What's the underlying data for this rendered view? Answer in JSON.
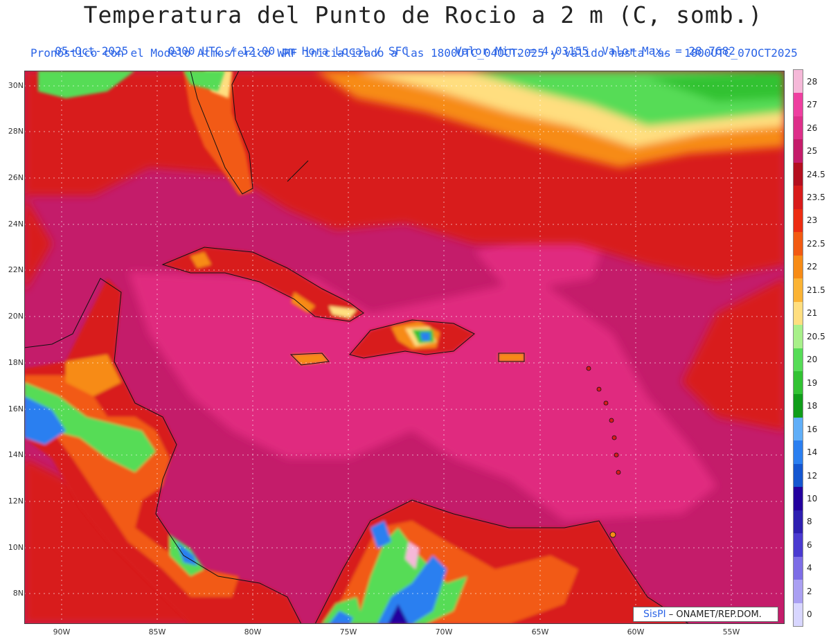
{
  "header": {
    "title": "Temperatura del Punto de Rocio a 2 m (C, somb.)",
    "date": "05-Oct-2025",
    "time": "0300 UTC / 12:00 pm Hora Local / SFC",
    "minmax": "Valor Min. = 4.03155  Valor Max. = 28.7682",
    "model_info": "Pronóstico con el Modelo Atmosferico WRF inicializado a las 1800UTC_04OCT2025 y válido hasta las  1800UTC_07OCT2025"
  },
  "axes": {
    "lat_labels": [
      "30N",
      "28N",
      "26N",
      "24N",
      "22N",
      "20N",
      "18N",
      "16N",
      "14N",
      "12N",
      "10N",
      "8N"
    ],
    "lon_labels": [
      "90W",
      "85W",
      "80W",
      "75W",
      "70W",
      "65W",
      "60W",
      "55W"
    ]
  },
  "colorbar": {
    "labels": [
      "28",
      "27",
      "26",
      "25",
      "24.5",
      "23.5",
      "23",
      "22.5",
      "22",
      "21.5",
      "21",
      "20.5",
      "20",
      "19",
      "18",
      "16",
      "14",
      "12",
      "10",
      "8",
      "6",
      "4",
      "2",
      "0"
    ],
    "colors": [
      "#f5b8d8",
      "#ee3fa0",
      "#dd2f8a",
      "#c41c6a",
      "#b40f1f",
      "#d81b1b",
      "#ec2c12",
      "#f25a12",
      "#f78b16",
      "#fbb335",
      "#ffde7f",
      "#a8f08a",
      "#56dc57",
      "#32c233",
      "#109d1a",
      "#60aef8",
      "#2b7ff0",
      "#1556d0",
      "#24009e",
      "#2e1fb0",
      "#4a3ad0",
      "#7d6de6",
      "#aaa0f2",
      "#d8d6ff"
    ]
  },
  "credit": {
    "logo": "SisPI",
    "text": " – ONAMET/REP.DOM."
  },
  "map_colors": {
    "sea_base": "#c41c6a",
    "sea_warm": "#e0297f",
    "atl_north": "#d81b1b",
    "atl_dry_orange": "#f78b16",
    "atl_dry_yellow": "#ffde7f",
    "atl_dry_green": "#56dc57",
    "land_red": "#d81b1b",
    "land_orange": "#f25a12",
    "land_green": "#32c233",
    "land_blue": "#2b7ff0",
    "land_purple": "#24009e"
  }
}
